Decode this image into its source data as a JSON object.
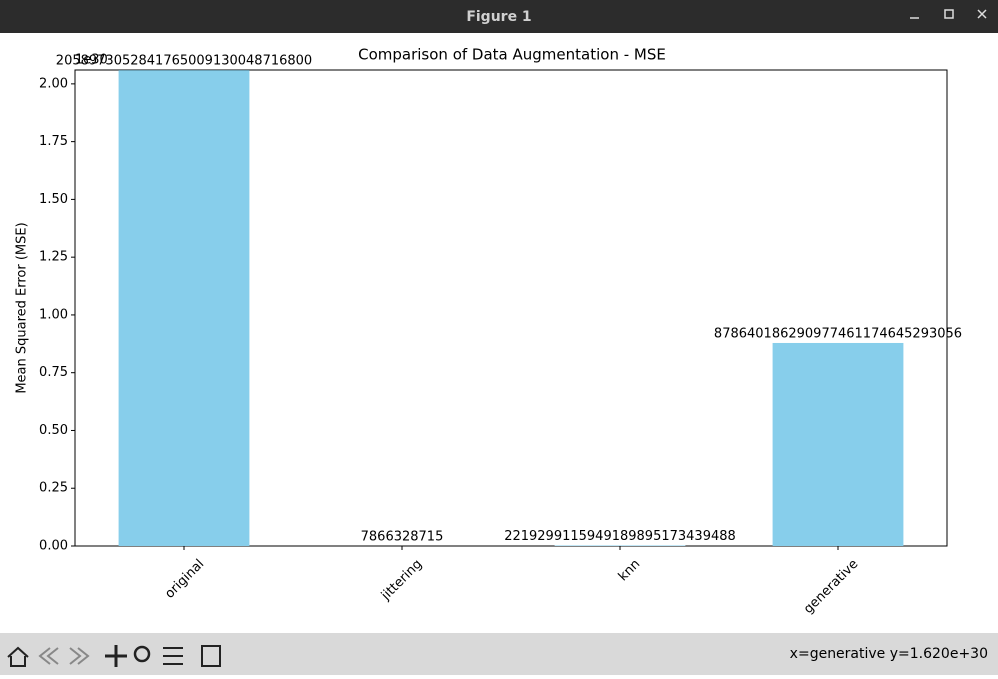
{
  "window": {
    "title": "Figure 1"
  },
  "chart_data": {
    "type": "bar",
    "title": "Comparison of Data Augmentation - MSE",
    "y_label": "Mean Squared Error (MSE)",
    "offset_label": "1e30",
    "categories": [
      "original",
      "jittering",
      "knn",
      "generative"
    ],
    "values": [
      2.058973052841765e+30,
      7866328715,
      2.21929911594919e+27,
      8.786401862909775e+29
    ],
    "value_labels": [
      "2058973052841765009130048716800",
      "7866328715",
      "2219299115949189895173439488",
      "878640186290977461174645293056"
    ],
    "color": "#87ceeb",
    "ylim": [
      0,
      2.06e+30
    ],
    "yticks": [
      {
        "value": 0,
        "label": "0.00"
      },
      {
        "value": 2.5e+29,
        "label": "0.25"
      },
      {
        "value": 5e+29,
        "label": "0.50"
      },
      {
        "value": 7.5e+29,
        "label": "0.75"
      },
      {
        "value": 1e+30,
        "label": "1.00"
      },
      {
        "value": 1.25e+30,
        "label": "1.25"
      },
      {
        "value": 1.5e+30,
        "label": "1.50"
      },
      {
        "value": 1.75e+30,
        "label": "1.75"
      },
      {
        "value": 2e+30,
        "label": "2.00"
      }
    ]
  },
  "status": "x=generative y=1.620e+30"
}
